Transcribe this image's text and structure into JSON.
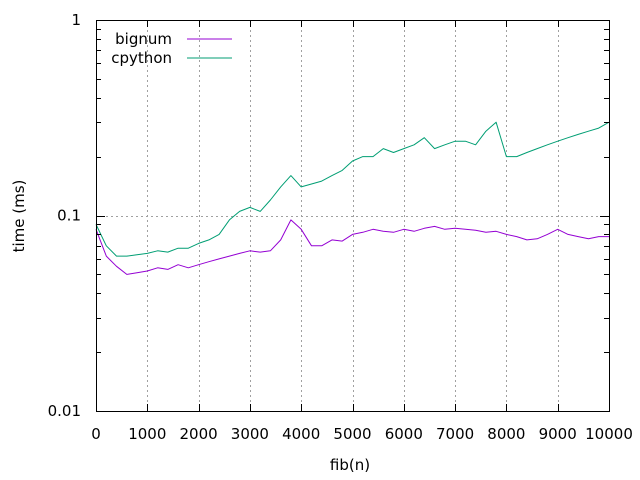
{
  "chart_data": {
    "type": "line",
    "title": "",
    "xlabel": "fib(n)",
    "ylabel": "time (ms)",
    "xlim": [
      0,
      10000
    ],
    "ylim": [
      0.01,
      1
    ],
    "yscale": "log",
    "grid": "dotted vertical lines at x ticks, horizontal line at 0.1",
    "legend_position": "top-left",
    "x_ticks": [
      0,
      1000,
      2000,
      3000,
      4000,
      5000,
      6000,
      7000,
      8000,
      9000,
      10000
    ],
    "x_tick_labels": [
      "0",
      "1000",
      "2000",
      "3000",
      "4000",
      "5000",
      "6000",
      "7000",
      "8000",
      "9000",
      "10000"
    ],
    "y_ticks": [
      0.01,
      0.1,
      1
    ],
    "y_tick_labels": [
      "0.01",
      "0.1",
      "1"
    ],
    "x": [
      0,
      200,
      400,
      600,
      800,
      1000,
      1200,
      1400,
      1600,
      1800,
      2000,
      2200,
      2400,
      2600,
      2800,
      3000,
      3200,
      3400,
      3600,
      3800,
      4000,
      4200,
      4400,
      4600,
      4800,
      5000,
      5200,
      5400,
      5600,
      5800,
      6000,
      6200,
      6400,
      6600,
      6800,
      7000,
      7200,
      7400,
      7600,
      7800,
      8000,
      8200,
      8400,
      8600,
      8800,
      9000,
      9200,
      9400,
      9600,
      9800,
      10000
    ],
    "series": [
      {
        "name": "bignum",
        "color": "#9400d3",
        "values": [
          0.085,
          0.062,
          0.055,
          0.05,
          0.051,
          0.052,
          0.054,
          0.053,
          0.056,
          0.054,
          0.056,
          0.058,
          0.06,
          0.062,
          0.064,
          0.066,
          0.065,
          0.066,
          0.075,
          0.095,
          0.085,
          0.07,
          0.07,
          0.075,
          0.074,
          0.08,
          0.082,
          0.085,
          0.083,
          0.082,
          0.085,
          0.083,
          0.086,
          0.088,
          0.085,
          0.086,
          0.085,
          0.084,
          0.082,
          0.083,
          0.08,
          0.078,
          0.075,
          0.076,
          0.08,
          0.085,
          0.08,
          0.078,
          0.076,
          0.078,
          0.078
        ]
      },
      {
        "name": "cpython",
        "color": "#009e73",
        "values": [
          0.09,
          0.07,
          0.062,
          0.062,
          0.063,
          0.064,
          0.066,
          0.065,
          0.068,
          0.068,
          0.072,
          0.075,
          0.08,
          0.095,
          0.105,
          0.11,
          0.105,
          0.12,
          0.14,
          0.16,
          0.14,
          0.145,
          0.15,
          0.16,
          0.17,
          0.19,
          0.2,
          0.2,
          0.22,
          0.21,
          0.22,
          0.23,
          0.25,
          0.22,
          0.23,
          0.24,
          0.24,
          0.23,
          0.27,
          0.3,
          0.2,
          0.2,
          0.21,
          0.22,
          0.23,
          0.24,
          0.25,
          0.26,
          0.27,
          0.28,
          0.3
        ]
      }
    ]
  }
}
